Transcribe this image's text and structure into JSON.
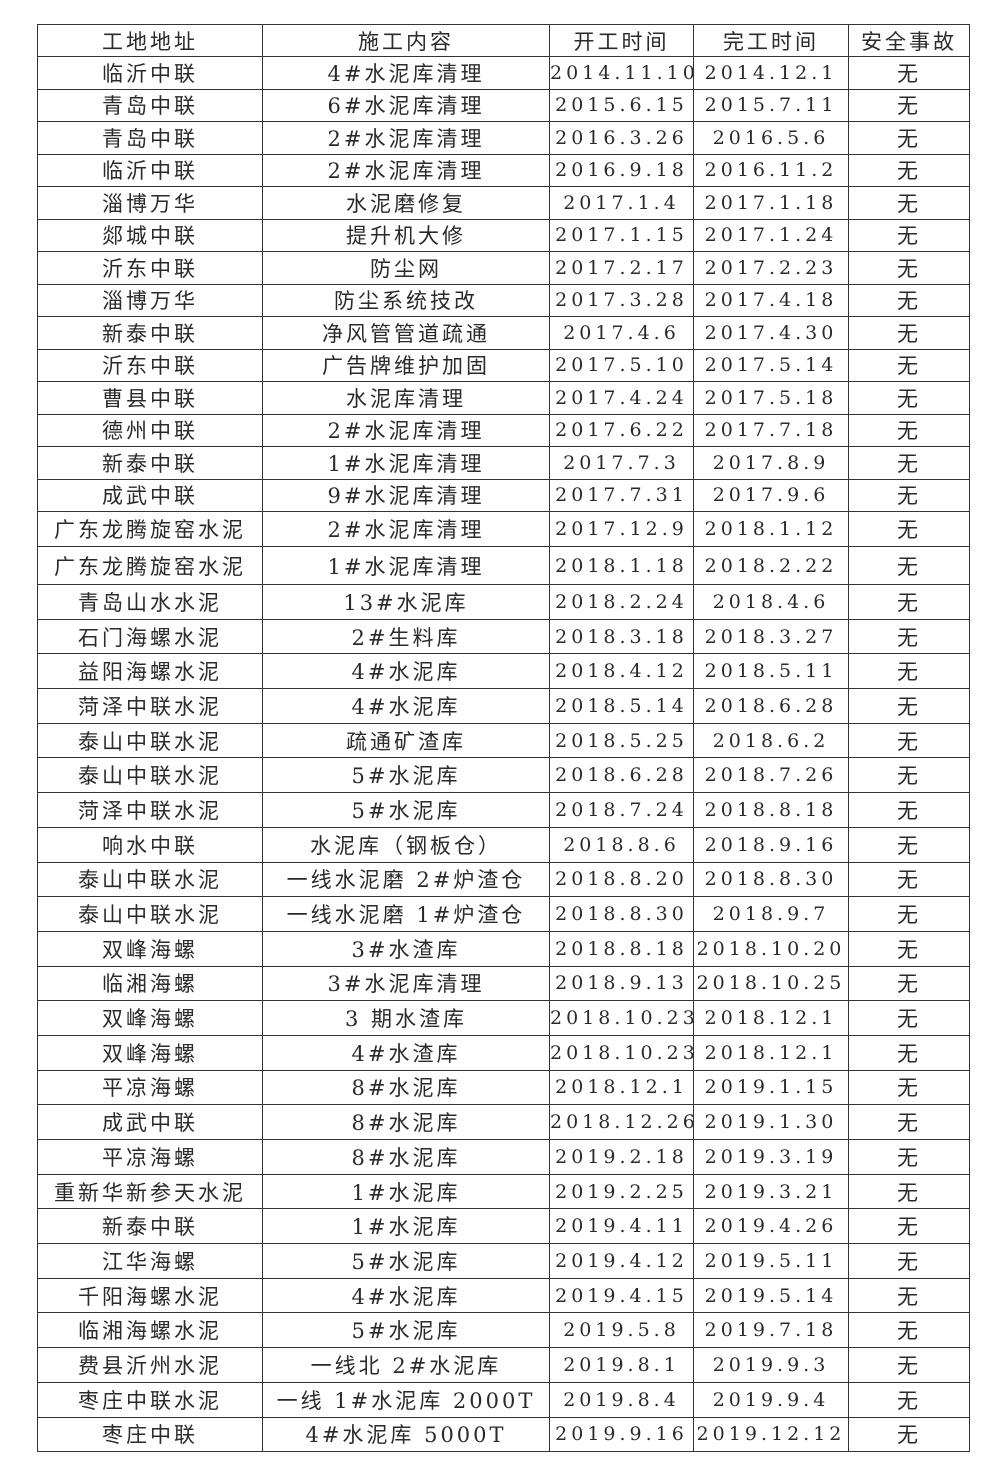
{
  "table": {
    "headers": [
      "工地地址",
      "施工内容",
      "开工时间",
      "完工时间",
      "安全事故"
    ],
    "rows": [
      [
        "临沂中联",
        "4#水泥库清理",
        "2014.11.10",
        "2014.12.1",
        "无"
      ],
      [
        "青岛中联",
        "6#水泥库清理",
        "2015.6.15",
        "2015.7.11",
        "无"
      ],
      [
        "青岛中联",
        "2#水泥库清理",
        "2016.3.26",
        "2016.5.6",
        "无"
      ],
      [
        "临沂中联",
        "2#水泥库清理",
        "2016.9.18",
        "2016.11.2",
        "无"
      ],
      [
        "淄博万华",
        "水泥磨修复",
        "2017.1.4",
        "2017.1.18",
        "无"
      ],
      [
        "郯城中联",
        "提升机大修",
        "2017.1.15",
        "2017.1.24",
        "无"
      ],
      [
        "沂东中联",
        "防尘网",
        "2017.2.17",
        "2017.2.23",
        "无"
      ],
      [
        "淄博万华",
        "防尘系统技改",
        "2017.3.28",
        "2017.4.18",
        "无"
      ],
      [
        "新泰中联",
        "净风管管道疏通",
        "2017.4.6",
        "2017.4.30",
        "无"
      ],
      [
        "沂东中联",
        "广告牌维护加固",
        "2017.5.10",
        "2017.5.14",
        "无"
      ],
      [
        "曹县中联",
        "水泥库清理",
        "2017.4.24",
        "2017.5.18",
        "无"
      ],
      [
        "德州中联",
        "2#水泥库清理",
        "2017.6.22",
        "2017.7.18",
        "无"
      ],
      [
        "新泰中联",
        "1#水泥库清理",
        "2017.7.3",
        "2017.8.9",
        "无"
      ],
      [
        "成武中联",
        "9#水泥库清理",
        "2017.7.31",
        "2017.9.6",
        "无"
      ],
      [
        "广东龙腾旋窑水泥",
        "2#水泥库清理",
        "2017.12.9",
        "2018.1.12",
        "无"
      ],
      [
        "广东龙腾旋窑水泥",
        "1#水泥库清理",
        "2018.1.18",
        "2018.2.22",
        "无"
      ],
      [
        "青岛山水水泥",
        "13#水泥库",
        "2018.2.24",
        "2018.4.6",
        "无"
      ],
      [
        "石门海螺水泥",
        "2#生料库",
        "2018.3.18",
        "2018.3.27",
        "无"
      ],
      [
        "益阳海螺水泥",
        "4#水泥库",
        "2018.4.12",
        "2018.5.11",
        "无"
      ],
      [
        "菏泽中联水泥",
        "4#水泥库",
        "2018.5.14",
        "2018.6.28",
        "无"
      ],
      [
        "泰山中联水泥",
        "疏通矿渣库",
        "2018.5.25",
        "2018.6.2",
        "无"
      ],
      [
        "泰山中联水泥",
        "5#水泥库",
        "2018.6.28",
        "2018.7.26",
        "无"
      ],
      [
        "菏泽中联水泥",
        "5#水泥库",
        "2018.7.24",
        "2018.8.18",
        "无"
      ],
      [
        "响水中联",
        "水泥库（钢板仓）",
        "2018.8.6",
        "2018.9.16",
        "无"
      ],
      [
        "泰山中联水泥",
        "一线水泥磨 2#炉渣仓",
        "2018.8.20",
        "2018.8.30",
        "无"
      ],
      [
        "泰山中联水泥",
        "一线水泥磨 1#炉渣仓",
        "2018.8.30",
        "2018.9.7",
        "无"
      ],
      [
        "双峰海螺",
        "3#水渣库",
        "2018.8.18",
        "2018.10.20",
        "无"
      ],
      [
        "临湘海螺",
        "3#水泥库清理",
        "2018.9.13",
        "2018.10.25",
        "无"
      ],
      [
        "双峰海螺",
        "3 期水渣库",
        "2018.10.23",
        "2018.12.1",
        "无"
      ],
      [
        "双峰海螺",
        "4#水渣库",
        "2018.10.23",
        "2018.12.1",
        "无"
      ],
      [
        "平凉海螺",
        "8#水泥库",
        "2018.12.1",
        "2019.1.15",
        "无"
      ],
      [
        "成武中联",
        "8#水泥库",
        "2018.12.26",
        "2019.1.30",
        "无"
      ],
      [
        "平凉海螺",
        "8#水泥库",
        "2019.2.18",
        "2019.3.19",
        "无"
      ],
      [
        "重新华新参天水泥",
        "1#水泥库",
        "2019.2.25",
        "2019.3.21",
        "无"
      ],
      [
        "新泰中联",
        "1#水泥库",
        "2019.4.11",
        "2019.4.26",
        "无"
      ],
      [
        "江华海螺",
        "5#水泥库",
        "2019.4.12",
        "2019.5.11",
        "无"
      ],
      [
        "千阳海螺水泥",
        "4#水泥库",
        "2019.4.15",
        "2019.5.14",
        "无"
      ],
      [
        "临湘海螺水泥",
        "5#水泥库",
        "2019.5.8",
        "2019.7.18",
        "无"
      ],
      [
        "费县沂州水泥",
        "一线北 2#水泥库",
        "2019.8.1",
        "2019.9.3",
        "无"
      ],
      [
        "枣庄中联水泥",
        "一线 1#水泥库 2000T",
        "2019.8.4",
        "2019.9.4",
        "无"
      ],
      [
        "枣庄中联",
        "4#水泥库 5000T",
        "2019.9.16",
        "2019.12.12",
        "无"
      ]
    ]
  }
}
